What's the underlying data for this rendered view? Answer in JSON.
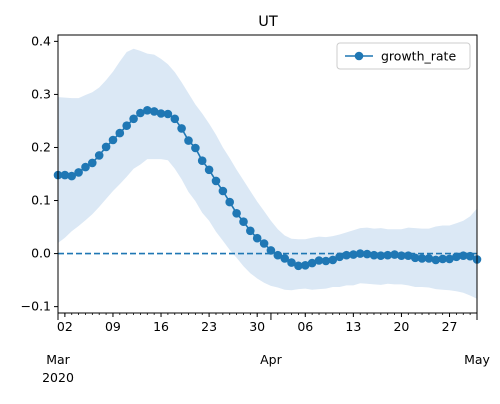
{
  "chart_data": {
    "type": "line",
    "title": "UT",
    "xlabel": "",
    "ylabel": "",
    "x_start": "2020-03-01",
    "x_end": "2020-05-01",
    "xlim": [
      "2020-03-01",
      "2020-05-01"
    ],
    "ylim": [
      -0.112,
      0.412
    ],
    "y_ticks": [
      -0.1,
      0.0,
      0.1,
      0.2,
      0.3,
      0.4
    ],
    "y_tick_labels": [
      "−0.1",
      "0.0",
      "0.1",
      "0.2",
      "0.3",
      "0.4"
    ],
    "x_minor_ticks": [
      {
        "date": "2020-03-02",
        "label": "02"
      },
      {
        "date": "2020-03-09",
        "label": "09"
      },
      {
        "date": "2020-03-16",
        "label": "16"
      },
      {
        "date": "2020-03-23",
        "label": "23"
      },
      {
        "date": "2020-03-30",
        "label": "30"
      },
      {
        "date": "2020-04-06",
        "label": "06"
      },
      {
        "date": "2020-04-13",
        "label": "13"
      },
      {
        "date": "2020-04-20",
        "label": "20"
      },
      {
        "date": "2020-04-27",
        "label": "27"
      }
    ],
    "x_major_ticks": [
      {
        "date": "2020-03-01",
        "label": "Mar\n2020"
      },
      {
        "date": "2020-04-01",
        "label": "Apr"
      },
      {
        "date": "2020-05-01",
        "label": "May"
      }
    ],
    "legend": {
      "position": "top-right",
      "entries": [
        "growth_rate"
      ]
    },
    "grid": false,
    "reference_line": {
      "y": 0.0,
      "style": "dashed",
      "color": "#1f77b4"
    },
    "colors": {
      "series": "#1f77b4",
      "band": "#dbe8f5"
    },
    "series": [
      {
        "name": "growth_rate",
        "marker": "circle",
        "x": [
          "2020-03-01",
          "2020-03-02",
          "2020-03-03",
          "2020-03-04",
          "2020-03-05",
          "2020-03-06",
          "2020-03-07",
          "2020-03-08",
          "2020-03-09",
          "2020-03-10",
          "2020-03-11",
          "2020-03-12",
          "2020-03-13",
          "2020-03-14",
          "2020-03-15",
          "2020-03-16",
          "2020-03-17",
          "2020-03-18",
          "2020-03-19",
          "2020-03-20",
          "2020-03-21",
          "2020-03-22",
          "2020-03-23",
          "2020-03-24",
          "2020-03-25",
          "2020-03-26",
          "2020-03-27",
          "2020-03-28",
          "2020-03-29",
          "2020-03-30",
          "2020-03-31",
          "2020-04-01",
          "2020-04-02",
          "2020-04-03",
          "2020-04-04",
          "2020-04-05",
          "2020-04-06",
          "2020-04-07",
          "2020-04-08",
          "2020-04-09",
          "2020-04-10",
          "2020-04-11",
          "2020-04-12",
          "2020-04-13",
          "2020-04-14",
          "2020-04-15",
          "2020-04-16",
          "2020-04-17",
          "2020-04-18",
          "2020-04-19",
          "2020-04-20",
          "2020-04-21",
          "2020-04-22",
          "2020-04-23",
          "2020-04-24",
          "2020-04-25",
          "2020-04-26",
          "2020-04-27",
          "2020-04-28",
          "2020-04-29",
          "2020-04-30",
          "2020-05-01"
        ],
        "values": [
          0.148,
          0.148,
          0.146,
          0.153,
          0.163,
          0.171,
          0.185,
          0.201,
          0.214,
          0.227,
          0.241,
          0.254,
          0.265,
          0.27,
          0.268,
          0.264,
          0.263,
          0.254,
          0.236,
          0.213,
          0.199,
          0.175,
          0.158,
          0.137,
          0.118,
          0.097,
          0.076,
          0.06,
          0.043,
          0.029,
          0.019,
          0.006,
          -0.003,
          -0.009,
          -0.017,
          -0.023,
          -0.022,
          -0.018,
          -0.013,
          -0.014,
          -0.012,
          -0.006,
          -0.003,
          -0.002,
          0.0,
          -0.001,
          -0.003,
          -0.004,
          -0.003,
          -0.002,
          -0.004,
          -0.004,
          -0.008,
          -0.009,
          -0.009,
          -0.012,
          -0.01,
          -0.01,
          -0.006,
          -0.004,
          -0.005,
          -0.011
        ],
        "lower": [
          0.02,
          0.03,
          0.042,
          0.052,
          0.063,
          0.074,
          0.088,
          0.103,
          0.118,
          0.131,
          0.145,
          0.16,
          0.168,
          0.178,
          0.178,
          0.178,
          0.176,
          0.16,
          0.14,
          0.116,
          0.099,
          0.077,
          0.062,
          0.041,
          0.024,
          0.007,
          -0.008,
          -0.024,
          -0.037,
          -0.047,
          -0.055,
          -0.061,
          -0.064,
          -0.068,
          -0.069,
          -0.067,
          -0.066,
          -0.068,
          -0.067,
          -0.066,
          -0.063,
          -0.063,
          -0.06,
          -0.06,
          -0.056,
          -0.057,
          -0.058,
          -0.059,
          -0.057,
          -0.058,
          -0.058,
          -0.06,
          -0.063,
          -0.063,
          -0.064,
          -0.067,
          -0.068,
          -0.069,
          -0.071,
          -0.074,
          -0.079,
          -0.085
        ],
        "upper": [
          0.295,
          0.294,
          0.293,
          0.293,
          0.299,
          0.304,
          0.313,
          0.327,
          0.343,
          0.362,
          0.38,
          0.386,
          0.382,
          0.377,
          0.375,
          0.367,
          0.357,
          0.342,
          0.323,
          0.302,
          0.281,
          0.264,
          0.245,
          0.224,
          0.2,
          0.18,
          0.158,
          0.138,
          0.118,
          0.098,
          0.08,
          0.062,
          0.046,
          0.034,
          0.028,
          0.027,
          0.027,
          0.03,
          0.032,
          0.031,
          0.033,
          0.036,
          0.04,
          0.044,
          0.048,
          0.049,
          0.047,
          0.048,
          0.046,
          0.046,
          0.046,
          0.049,
          0.048,
          0.047,
          0.047,
          0.051,
          0.053,
          0.053,
          0.057,
          0.062,
          0.07,
          0.085
        ]
      }
    ]
  }
}
